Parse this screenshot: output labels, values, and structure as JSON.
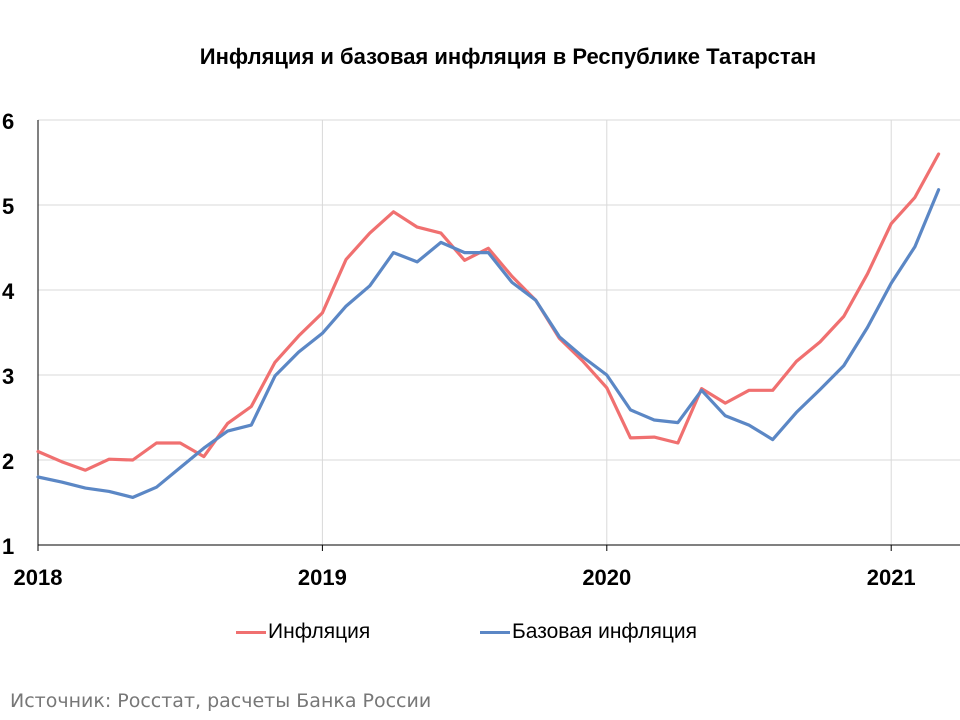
{
  "chart_data": {
    "type": "line",
    "title": "Инфляция и базовая инфляция в Республике Татарстан",
    "xlabel": "",
    "ylabel": "",
    "ylim": [
      1,
      6
    ],
    "xlim": [
      "2018-01",
      "2021-04"
    ],
    "grid": true,
    "legend": "bottom",
    "y_ticks": [
      "1",
      "2",
      "3",
      "4",
      "5",
      "6"
    ],
    "x_ticks": [
      "2018",
      "2019",
      "2020",
      "2021"
    ],
    "x": [
      "2018-01",
      "2018-02",
      "2018-03",
      "2018-04",
      "2018-05",
      "2018-06",
      "2018-07",
      "2018-08",
      "2018-09",
      "2018-10",
      "2018-11",
      "2018-12",
      "2019-01",
      "2019-02",
      "2019-03",
      "2019-04",
      "2019-05",
      "2019-06",
      "2019-07",
      "2019-08",
      "2019-09",
      "2019-10",
      "2019-11",
      "2019-12",
      "2020-01",
      "2020-02",
      "2020-03",
      "2020-04",
      "2020-05",
      "2020-06",
      "2020-07",
      "2020-08",
      "2020-09",
      "2020-10",
      "2020-11",
      "2020-12",
      "2021-01",
      "2021-02",
      "2021-03"
    ],
    "series": [
      {
        "name": "Инфляция",
        "color": "#f07070",
        "values": [
          2.1,
          1.98,
          1.88,
          2.01,
          2.0,
          2.2,
          2.2,
          2.04,
          2.43,
          2.63,
          3.15,
          3.46,
          3.73,
          4.36,
          4.67,
          4.92,
          4.74,
          4.67,
          4.35,
          4.49,
          4.16,
          3.88,
          3.43,
          3.16,
          2.85,
          2.26,
          2.27,
          2.2,
          2.84,
          2.67,
          2.82,
          2.82,
          3.16,
          3.39,
          3.69,
          4.19,
          4.78,
          5.09,
          5.6
        ]
      },
      {
        "name": "Базовая инфляция",
        "color": "#5b87c5",
        "values": [
          1.8,
          1.74,
          1.67,
          1.63,
          1.56,
          1.68,
          1.91,
          2.14,
          2.34,
          2.41,
          2.99,
          3.27,
          3.49,
          3.81,
          4.05,
          4.44,
          4.33,
          4.56,
          4.44,
          4.44,
          4.09,
          3.88,
          3.45,
          3.21,
          3.0,
          2.59,
          2.47,
          2.44,
          2.82,
          2.52,
          2.41,
          2.24,
          2.56,
          2.83,
          3.11,
          3.56,
          4.08,
          4.51,
          5.18
        ]
      }
    ]
  },
  "source_note": "Источник: Росстат, расчеты Банка России"
}
